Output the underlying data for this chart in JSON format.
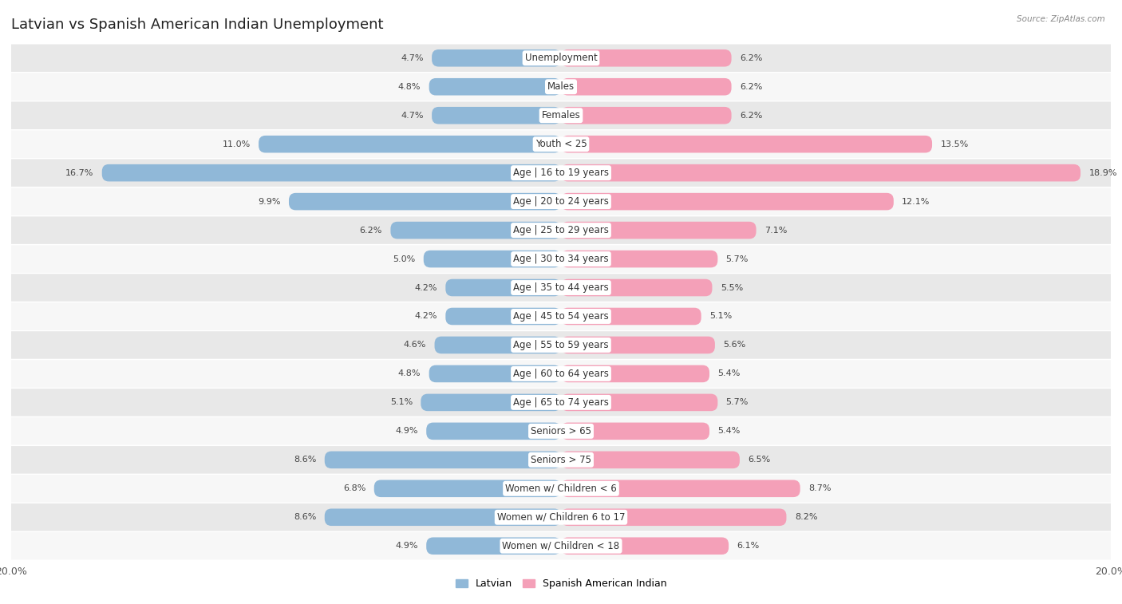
{
  "title": "Latvian vs Spanish American Indian Unemployment",
  "source": "Source: ZipAtlas.com",
  "categories": [
    "Unemployment",
    "Males",
    "Females",
    "Youth < 25",
    "Age | 16 to 19 years",
    "Age | 20 to 24 years",
    "Age | 25 to 29 years",
    "Age | 30 to 34 years",
    "Age | 35 to 44 years",
    "Age | 45 to 54 years",
    "Age | 55 to 59 years",
    "Age | 60 to 64 years",
    "Age | 65 to 74 years",
    "Seniors > 65",
    "Seniors > 75",
    "Women w/ Children < 6",
    "Women w/ Children 6 to 17",
    "Women w/ Children < 18"
  ],
  "latvian": [
    4.7,
    4.8,
    4.7,
    11.0,
    16.7,
    9.9,
    6.2,
    5.0,
    4.2,
    4.2,
    4.6,
    4.8,
    5.1,
    4.9,
    8.6,
    6.8,
    8.6,
    4.9
  ],
  "spanish_american_indian": [
    6.2,
    6.2,
    6.2,
    13.5,
    18.9,
    12.1,
    7.1,
    5.7,
    5.5,
    5.1,
    5.6,
    5.4,
    5.7,
    5.4,
    6.5,
    8.7,
    8.2,
    6.1
  ],
  "latvian_color": "#90b8d8",
  "spanish_color": "#f4a0b8",
  "background_row_light": "#e8e8e8",
  "background_row_white": "#f7f7f7",
  "axis_limit": 20.0,
  "legend_latvian": "Latvian",
  "legend_spanish": "Spanish American Indian",
  "title_fontsize": 13,
  "label_fontsize": 8.5,
  "value_fontsize": 8,
  "bar_height": 0.6
}
